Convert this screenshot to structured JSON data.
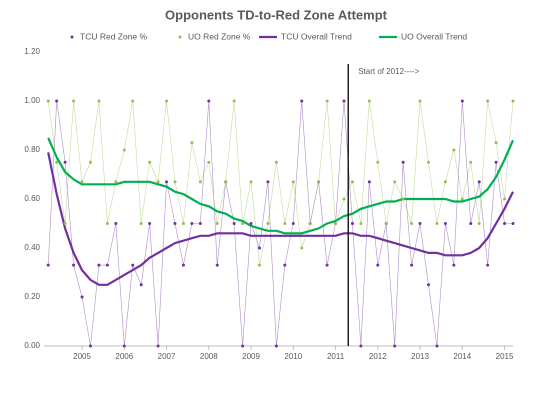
{
  "chart_data": {
    "type": "line",
    "title": "Opponents TD-to-Red Zone Attempt",
    "x": [
      2004.2,
      2004.4,
      2004.6,
      2004.8,
      2005.0,
      2005.2,
      2005.4,
      2005.6,
      2005.8,
      2006.0,
      2006.2,
      2006.4,
      2006.6,
      2006.8,
      2007.0,
      2007.2,
      2007.4,
      2007.6,
      2007.8,
      2008.0,
      2008.2,
      2008.4,
      2008.6,
      2008.8,
      2009.0,
      2009.2,
      2009.4,
      2009.6,
      2009.8,
      2010.0,
      2010.2,
      2010.4,
      2010.6,
      2010.8,
      2011.0,
      2011.2,
      2011.4,
      2011.6,
      2011.8,
      2012.0,
      2012.2,
      2012.4,
      2012.6,
      2012.8,
      2013.0,
      2013.2,
      2013.4,
      2013.6,
      2013.8,
      2014.0,
      2014.2,
      2014.4,
      2014.6,
      2014.8,
      2015.0,
      2015.2
    ],
    "series": [
      {
        "name": "TCU Red Zone %",
        "color": "#7030a0",
        "marker": true,
        "values": [
          0.33,
          1,
          0.75,
          0.33,
          0.2,
          0,
          0.33,
          0.33,
          0.5,
          0,
          0.33,
          0.25,
          0.5,
          0,
          0.67,
          0.5,
          0.33,
          0.5,
          0.5,
          1,
          0.33,
          0.67,
          0.5,
          0,
          0.5,
          0.4,
          0.67,
          0,
          0.33,
          0.5,
          1,
          0.5,
          0.67,
          0.33,
          0.5,
          1,
          0.5,
          0,
          0.67,
          0.33,
          0.5,
          0,
          0.75,
          0.33,
          0.5,
          0.25,
          0,
          0.5,
          0.33,
          1,
          0.5,
          0.67,
          0.33,
          0.75,
          0.5,
          0.5
        ]
      },
      {
        "name": "UO Red Zone %",
        "color": "#92c050",
        "marker": true,
        "values": [
          1,
          0.75,
          0.5,
          1,
          0.67,
          0.75,
          1,
          0.5,
          0.67,
          0.8,
          1,
          0.5,
          0.75,
          0.67,
          1,
          0.67,
          0.5,
          0.83,
          0.67,
          0.75,
          0.5,
          0.67,
          1,
          0.5,
          0.67,
          0.33,
          0.5,
          0.75,
          0.5,
          0.67,
          0.4,
          0.5,
          0.67,
          1,
          0.5,
          0.6,
          0.67,
          0.5,
          1,
          0.75,
          0.5,
          0.67,
          0.6,
          0.5,
          1,
          0.75,
          0.5,
          0.67,
          0.8,
          0.6,
          0.75,
          0.5,
          1,
          0.83,
          0.6,
          1
        ]
      },
      {
        "name": "TCU Overall Trend",
        "color": "#7030a0",
        "marker": false,
        "values": [
          0.79,
          0.62,
          0.48,
          0.38,
          0.31,
          0.27,
          0.25,
          0.25,
          0.27,
          0.29,
          0.31,
          0.33,
          0.36,
          0.38,
          0.4,
          0.42,
          0.43,
          0.44,
          0.45,
          0.45,
          0.46,
          0.46,
          0.46,
          0.46,
          0.45,
          0.45,
          0.45,
          0.45,
          0.45,
          0.45,
          0.45,
          0.45,
          0.45,
          0.45,
          0.45,
          0.46,
          0.46,
          0.45,
          0.45,
          0.44,
          0.43,
          0.42,
          0.41,
          0.4,
          0.39,
          0.38,
          0.38,
          0.37,
          0.37,
          0.37,
          0.38,
          0.4,
          0.44,
          0.5,
          0.56,
          0.63
        ]
      },
      {
        "name": "UO Overall Trend",
        "color": "#00b050",
        "marker": false,
        "values": [
          0.85,
          0.77,
          0.71,
          0.68,
          0.66,
          0.66,
          0.66,
          0.66,
          0.66,
          0.67,
          0.67,
          0.67,
          0.67,
          0.66,
          0.65,
          0.63,
          0.62,
          0.6,
          0.58,
          0.57,
          0.55,
          0.54,
          0.52,
          0.51,
          0.49,
          0.48,
          0.47,
          0.47,
          0.46,
          0.46,
          0.46,
          0.47,
          0.48,
          0.5,
          0.51,
          0.53,
          0.54,
          0.56,
          0.57,
          0.58,
          0.59,
          0.59,
          0.6,
          0.6,
          0.6,
          0.6,
          0.6,
          0.6,
          0.59,
          0.59,
          0.6,
          0.61,
          0.64,
          0.69,
          0.76,
          0.84
        ]
      }
    ],
    "xlim": [
      2004.1,
      2015.2
    ],
    "xticks": [
      2005,
      2006,
      2007,
      2008,
      2009,
      2010,
      2011,
      2012,
      2013,
      2014,
      2015
    ],
    "ylim": [
      0,
      1.2
    ],
    "yticks": [
      {
        "value": 0,
        "label": "0.00"
      },
      {
        "value": 0.2,
        "label": "0.20"
      },
      {
        "value": 0.4,
        "label": "0.40"
      },
      {
        "value": 0.6,
        "label": "0.60"
      },
      {
        "value": 0.8,
        "label": "0.80"
      },
      {
        "value": 1,
        "label": "1.00"
      },
      {
        "value": 1.2,
        "label": "1.20"
      }
    ],
    "grid": false,
    "legend": "top",
    "annotation": {
      "text": "Start of 2012---->",
      "x": 2011.3
    }
  }
}
